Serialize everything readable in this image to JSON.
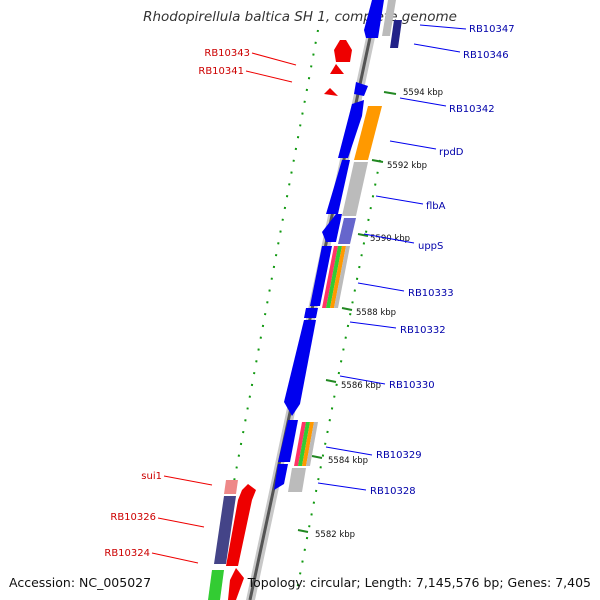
{
  "title": "Rhodopirellula baltica SH 1, complete genome",
  "footer": {
    "accession": "Accession: NC_005027",
    "summary": "Topology: circular; Length: 7,145,576 bp; Genes: 7,405"
  },
  "colors": {
    "forward": "#0000ee",
    "reverse": "#ee0000",
    "orange": "#ff9900",
    "grey": "#bbbbbb",
    "purple": "#6666cc",
    "dark_purple": "#444488",
    "green": "#33cc33",
    "pink": "#ee8888",
    "label_forward": "#0000aa",
    "label_reverse": "#cc0000",
    "tick": "#228822"
  },
  "ticks": [
    {
      "label": "5594 kbp"
    },
    {
      "label": "5592 kbp"
    },
    {
      "label": "5590 kbp"
    },
    {
      "label": "5588 kbp"
    },
    {
      "label": "5586 kbp"
    },
    {
      "label": "5584 kbp"
    },
    {
      "label": "5582 kbp"
    }
  ],
  "forward_labels": [
    {
      "label": "RB10347"
    },
    {
      "label": "RB10346"
    },
    {
      "label": "RB10342"
    },
    {
      "label": "rpdD"
    },
    {
      "label": "flbA"
    },
    {
      "label": "uppS"
    },
    {
      "label": "RB10333"
    },
    {
      "label": "RB10332"
    },
    {
      "label": "RB10330"
    },
    {
      "label": "RB10329"
    },
    {
      "label": "RB10328"
    }
  ],
  "reverse_labels": [
    {
      "label": "RB10343"
    },
    {
      "label": "RB10341"
    },
    {
      "label": "sui1"
    },
    {
      "label": "RB10326"
    },
    {
      "label": "RB10324"
    }
  ]
}
